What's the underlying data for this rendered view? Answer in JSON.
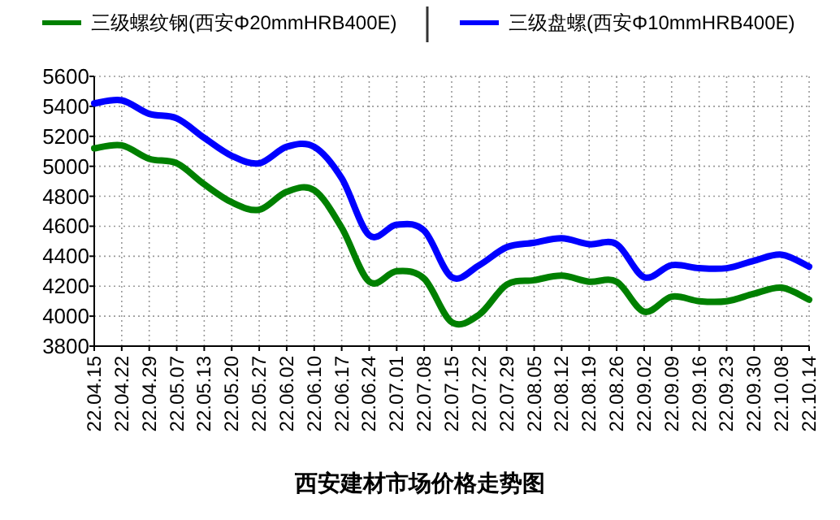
{
  "chart_data": {
    "type": "line",
    "title": "西安建材市场价格走势图",
    "categories": [
      "22.04.15",
      "22.04.22",
      "22.04.29",
      "22.05.07",
      "22.05.13",
      "22.05.20",
      "22.05.27",
      "22.06.02",
      "22.06.10",
      "22.06.17",
      "22.06.24",
      "22.07.01",
      "22.07.08",
      "22.07.15",
      "22.07.22",
      "22.07.29",
      "22.08.05",
      "22.08.12",
      "22.08.19",
      "22.08.26",
      "22.09.02",
      "22.09.09",
      "22.09.16",
      "22.09.23",
      "22.09.30",
      "22.10.08",
      "22.10.14"
    ],
    "series": [
      {
        "name": "三级螺纹钢(西安Φ20mmHRB400E)",
        "color": "#008000",
        "values": [
          5120,
          5140,
          5050,
          5020,
          4880,
          4760,
          4710,
          4830,
          4840,
          4590,
          4230,
          4300,
          4250,
          3960,
          4010,
          4210,
          4240,
          4270,
          4230,
          4230,
          4030,
          4130,
          4100,
          4100,
          4150,
          4190,
          4110
        ]
      },
      {
        "name": "三级盘螺(西安Φ10mmHRB400E)",
        "color": "#0000ff",
        "values": [
          5420,
          5440,
          5350,
          5320,
          5190,
          5070,
          5020,
          5130,
          5130,
          4920,
          4540,
          4610,
          4570,
          4260,
          4340,
          4460,
          4490,
          4520,
          4480,
          4480,
          4260,
          4340,
          4320,
          4320,
          4370,
          4410,
          4330
        ]
      }
    ],
    "ylim": [
      3800,
      5600
    ],
    "yticks": [
      3800,
      4000,
      4200,
      4400,
      4600,
      4800,
      5000,
      5200,
      5400,
      5600
    ],
    "grid": true,
    "legend": "top",
    "marker": "none",
    "line_style": "solid"
  }
}
